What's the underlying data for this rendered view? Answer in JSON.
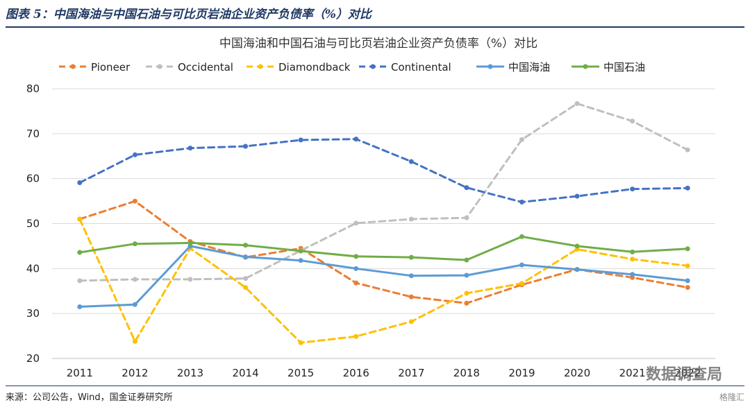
{
  "caption": "图表 5：中国海油与中国石油与可比页岩油企业资产负债率（%）对比",
  "source": "来源：公司公告，Wind，国金证券研究所",
  "watermark": "数据调查局",
  "watermark_brand": "格隆汇",
  "chart_data": {
    "type": "line",
    "title": "中国海油和中国石油与可比页岩油企业资产负债率（%）对比",
    "xlabel": "",
    "ylabel": "",
    "x": [
      "2011",
      "2012",
      "2013",
      "2014",
      "2015",
      "2016",
      "2017",
      "2018",
      "2019",
      "2020",
      "2021",
      "2022"
    ],
    "ylim": [
      20,
      80
    ],
    "yticks": [
      20,
      30,
      40,
      50,
      60,
      70,
      80
    ],
    "grid": true,
    "legend_position": "top",
    "series": [
      {
        "name": "Pioneer",
        "color": "#ed7d31",
        "dash": true,
        "values": [
          51,
          55,
          46,
          42.5,
          44.5,
          36.8,
          33.7,
          32.3,
          36.4,
          39.8,
          38,
          35.8
        ]
      },
      {
        "name": "Occidental",
        "color": "#bfbfbf",
        "dash": true,
        "values": [
          37.3,
          37.6,
          37.6,
          37.8,
          44,
          50.1,
          51,
          51.3,
          68.7,
          76.7,
          72.8,
          66.4
        ]
      },
      {
        "name": "Diamondback",
        "color": "#ffc000",
        "dash": true,
        "values": [
          51,
          23.8,
          44.5,
          35.8,
          23.5,
          24.9,
          28.2,
          34.5,
          36.7,
          44.3,
          42.1,
          40.6
        ]
      },
      {
        "name": "Continental",
        "color": "#4472c4",
        "dash": true,
        "values": [
          59.1,
          65.3,
          66.8,
          67.2,
          68.6,
          68.8,
          63.8,
          58,
          54.8,
          56.1,
          57.7,
          57.9
        ]
      },
      {
        "name": "中国海油",
        "color": "#5b9bd5",
        "dash": false,
        "values": [
          31.5,
          32,
          45,
          42.6,
          41.8,
          40,
          38.4,
          38.5,
          40.8,
          39.8,
          38.7,
          37.3
        ]
      },
      {
        "name": "中国石油",
        "color": "#70ad47",
        "dash": false,
        "values": [
          43.6,
          45.5,
          45.7,
          45.2,
          43.9,
          42.7,
          42.5,
          41.9,
          47.1,
          45,
          43.7,
          44.4
        ]
      }
    ]
  }
}
